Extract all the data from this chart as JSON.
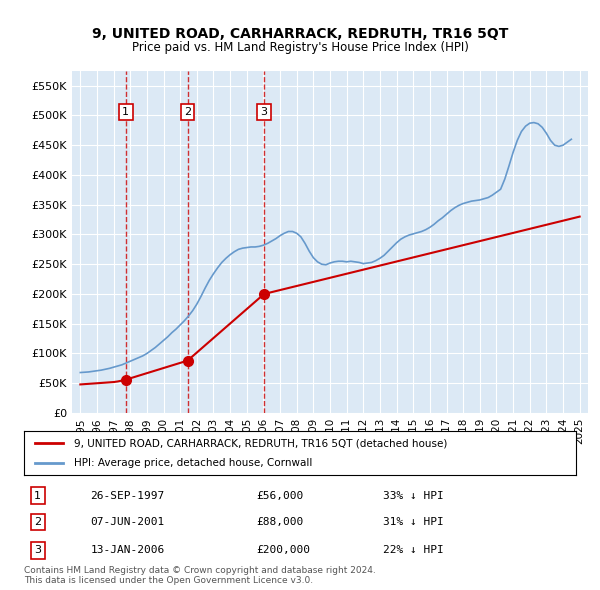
{
  "title": "9, UNITED ROAD, CARHARRACK, REDRUTH, TR16 5QT",
  "subtitle": "Price paid vs. HM Land Registry's House Price Index (HPI)",
  "ylim": [
    0,
    575000
  ],
  "yticks": [
    0,
    50000,
    100000,
    150000,
    200000,
    250000,
    300000,
    350000,
    400000,
    450000,
    500000,
    550000
  ],
  "ytick_labels": [
    "£0",
    "£50K",
    "£100K",
    "£150K",
    "£200K",
    "£250K",
    "£300K",
    "£350K",
    "£400K",
    "£450K",
    "£500K",
    "£550K"
  ],
  "xlim_start": 1994.5,
  "xlim_end": 2025.5,
  "background_color": "#dce9f5",
  "plot_bg_color": "#dce9f5",
  "sale_dates_decimal": [
    1997.73,
    2001.44,
    2006.04
  ],
  "sale_prices": [
    56000,
    88000,
    200000
  ],
  "sale_labels": [
    "1",
    "2",
    "3"
  ],
  "sale_date_str": [
    "26-SEP-1997",
    "07-JUN-2001",
    "13-JAN-2006"
  ],
  "sale_price_str": [
    "£56,000",
    "£88,000",
    "£200,000"
  ],
  "sale_hpi_str": [
    "33% ↓ HPI",
    "31% ↓ HPI",
    "22% ↓ HPI"
  ],
  "legend_line1": "9, UNITED ROAD, CARHARRACK, REDRUTH, TR16 5QT (detached house)",
  "legend_line2": "HPI: Average price, detached house, Cornwall",
  "footer1": "Contains HM Land Registry data © Crown copyright and database right 2024.",
  "footer2": "This data is licensed under the Open Government Licence v3.0.",
  "red_color": "#cc0000",
  "blue_color": "#6699cc",
  "hpi_years": [
    1995.0,
    1995.25,
    1995.5,
    1995.75,
    1996.0,
    1996.25,
    1996.5,
    1996.75,
    1997.0,
    1997.25,
    1997.5,
    1997.75,
    1998.0,
    1998.25,
    1998.5,
    1998.75,
    1999.0,
    1999.25,
    1999.5,
    1999.75,
    2000.0,
    2000.25,
    2000.5,
    2000.75,
    2001.0,
    2001.25,
    2001.5,
    2001.75,
    2002.0,
    2002.25,
    2002.5,
    2002.75,
    2003.0,
    2003.25,
    2003.5,
    2003.75,
    2004.0,
    2004.25,
    2004.5,
    2004.75,
    2005.0,
    2005.25,
    2005.5,
    2005.75,
    2006.0,
    2006.25,
    2006.5,
    2006.75,
    2007.0,
    2007.25,
    2007.5,
    2007.75,
    2008.0,
    2008.25,
    2008.5,
    2008.75,
    2009.0,
    2009.25,
    2009.5,
    2009.75,
    2010.0,
    2010.25,
    2010.5,
    2010.75,
    2011.0,
    2011.25,
    2011.5,
    2011.75,
    2012.0,
    2012.25,
    2012.5,
    2012.75,
    2013.0,
    2013.25,
    2013.5,
    2013.75,
    2014.0,
    2014.25,
    2014.5,
    2014.75,
    2015.0,
    2015.25,
    2015.5,
    2015.75,
    2016.0,
    2016.25,
    2016.5,
    2016.75,
    2017.0,
    2017.25,
    2017.5,
    2017.75,
    2018.0,
    2018.25,
    2018.5,
    2018.75,
    2019.0,
    2019.25,
    2019.5,
    2019.75,
    2020.0,
    2020.25,
    2020.5,
    2020.75,
    2021.0,
    2021.25,
    2021.5,
    2021.75,
    2022.0,
    2022.25,
    2022.5,
    2022.75,
    2023.0,
    2023.25,
    2023.5,
    2023.75,
    2024.0,
    2024.25,
    2024.5
  ],
  "hpi_values": [
    68000,
    68500,
    69000,
    70000,
    71000,
    72000,
    73500,
    75000,
    77000,
    79000,
    81000,
    84000,
    87000,
    90000,
    93000,
    96000,
    100000,
    105000,
    110000,
    116000,
    122000,
    128000,
    135000,
    141000,
    148000,
    155000,
    163000,
    172000,
    183000,
    196000,
    210000,
    223000,
    234000,
    244000,
    253000,
    260000,
    266000,
    271000,
    275000,
    277000,
    278000,
    279000,
    279000,
    280000,
    282000,
    285000,
    289000,
    293000,
    298000,
    302000,
    305000,
    305000,
    302000,
    296000,
    285000,
    272000,
    261000,
    254000,
    250000,
    249000,
    252000,
    254000,
    255000,
    255000,
    254000,
    255000,
    254000,
    253000,
    251000,
    252000,
    253000,
    256000,
    260000,
    265000,
    272000,
    279000,
    286000,
    292000,
    296000,
    299000,
    301000,
    303000,
    305000,
    308000,
    312000,
    317000,
    323000,
    328000,
    334000,
    340000,
    345000,
    349000,
    352000,
    354000,
    356000,
    357000,
    358000,
    360000,
    362000,
    366000,
    371000,
    376000,
    393000,
    415000,
    438000,
    458000,
    473000,
    482000,
    487000,
    488000,
    486000,
    480000,
    470000,
    458000,
    450000,
    448000,
    450000,
    455000,
    460000
  ],
  "red_years": [
    1995.0,
    1995.25,
    1995.5,
    1995.75,
    1996.0,
    1996.25,
    1996.5,
    1996.75,
    1997.0,
    1997.25,
    1997.5,
    1997.73,
    2001.44,
    2006.04,
    2025.0
  ],
  "red_values": [
    48000,
    48500,
    49000,
    49500,
    50000,
    50500,
    51000,
    51500,
    52000,
    53000,
    54500,
    56000,
    88000,
    200000,
    330000
  ]
}
